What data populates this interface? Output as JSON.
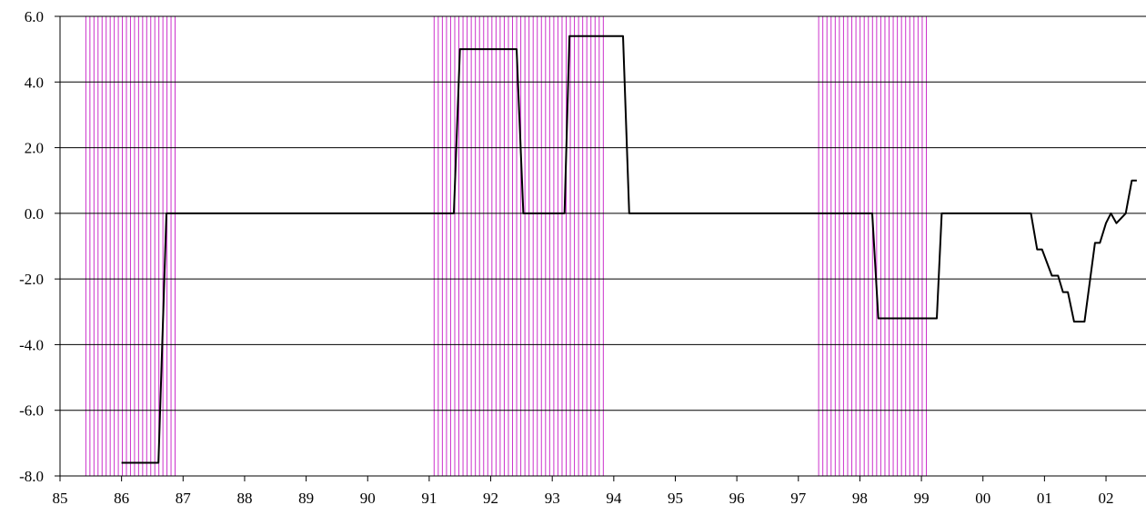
{
  "chart_data": {
    "type": "line",
    "title": "",
    "xlabel": "",
    "ylabel": "",
    "xlim": [
      1985,
      2002.65
    ],
    "ylim": [
      -8.0,
      6.0
    ],
    "x_ticks": [
      {
        "value": 1985,
        "label": "85"
      },
      {
        "value": 1986,
        "label": "86"
      },
      {
        "value": 1987,
        "label": "87"
      },
      {
        "value": 1988,
        "label": "88"
      },
      {
        "value": 1989,
        "label": "89"
      },
      {
        "value": 1990,
        "label": "90"
      },
      {
        "value": 1991,
        "label": "91"
      },
      {
        "value": 1992,
        "label": "92"
      },
      {
        "value": 1993,
        "label": "93"
      },
      {
        "value": 1994,
        "label": "94"
      },
      {
        "value": 1995,
        "label": "95"
      },
      {
        "value": 1996,
        "label": "96"
      },
      {
        "value": 1997,
        "label": "97"
      },
      {
        "value": 1998,
        "label": "98"
      },
      {
        "value": 1999,
        "label": "99"
      },
      {
        "value": 2000,
        "label": "00"
      },
      {
        "value": 2001,
        "label": "01"
      },
      {
        "value": 2002,
        "label": "02"
      }
    ],
    "y_ticks": [
      {
        "value": 6,
        "label": "6.0"
      },
      {
        "value": 4,
        "label": "4.0"
      },
      {
        "value": 2,
        "label": "2.0"
      },
      {
        "value": 0,
        "label": "0.0"
      },
      {
        "value": -2,
        "label": "-2.0"
      },
      {
        "value": -4,
        "label": "-4.0"
      },
      {
        "value": -6,
        "label": "-6.0"
      },
      {
        "value": -8,
        "label": "-8.0"
      }
    ],
    "grid": "horizontal",
    "shaded_periods": [
      {
        "start": 1985.42,
        "end": 1986.87,
        "color": "#cc33cc"
      },
      {
        "start": 1991.08,
        "end": 1993.83,
        "color": "#cc33cc"
      },
      {
        "start": 1997.33,
        "end": 1999.08,
        "color": "#cc33cc"
      }
    ],
    "series": [
      {
        "color": "#000000",
        "points": [
          [
            1986.0,
            -7.6
          ],
          [
            1986.6,
            -7.6
          ],
          [
            1986.73,
            0.0
          ],
          [
            1991.4,
            0.0
          ],
          [
            1991.5,
            5.0
          ],
          [
            1992.42,
            5.0
          ],
          [
            1992.53,
            0.0
          ],
          [
            1993.2,
            0.0
          ],
          [
            1993.28,
            5.4
          ],
          [
            1994.15,
            5.4
          ],
          [
            1994.25,
            0.0
          ],
          [
            1998.2,
            0.0
          ],
          [
            1998.3,
            -3.2
          ],
          [
            1999.25,
            -3.2
          ],
          [
            1999.33,
            0.0
          ],
          [
            2000.78,
            0.0
          ],
          [
            2000.88,
            -1.1
          ],
          [
            2000.96,
            -1.1
          ],
          [
            2001.12,
            -1.9
          ],
          [
            2001.22,
            -1.9
          ],
          [
            2001.3,
            -2.4
          ],
          [
            2001.38,
            -2.4
          ],
          [
            2001.48,
            -3.3
          ],
          [
            2001.65,
            -3.3
          ],
          [
            2001.82,
            -0.9
          ],
          [
            2001.9,
            -0.9
          ],
          [
            2002.0,
            -0.3
          ],
          [
            2002.08,
            0.0
          ],
          [
            2002.17,
            -0.3
          ],
          [
            2002.32,
            0.0
          ],
          [
            2002.42,
            1.0
          ],
          [
            2002.5,
            1.0
          ]
        ]
      }
    ]
  }
}
